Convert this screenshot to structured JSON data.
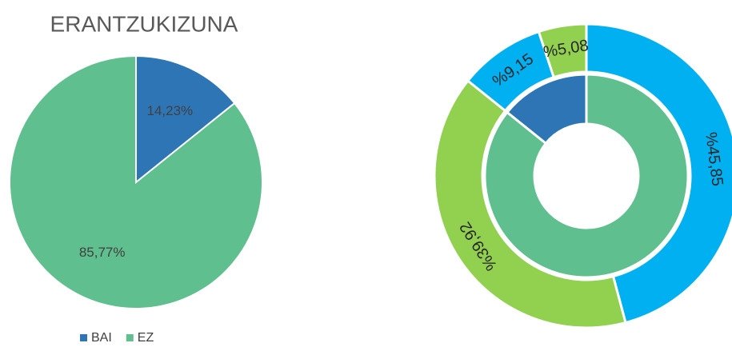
{
  "chart_data": [
    {
      "type": "pie",
      "title": "ERANTZUKIZUNA",
      "categories": [
        "BAI",
        "EZ"
      ],
      "values": [
        14.23,
        85.77
      ],
      "value_labels": [
        "14,23%",
        "85,77%"
      ],
      "colors": [
        "#2e75b6",
        "#5fbf8f"
      ],
      "legend": "bottom"
    },
    {
      "type": "donut",
      "series": [
        {
          "values": [
            85.77,
            14.23
          ],
          "colors": [
            "#5fbf8f",
            "#2e75b6"
          ]
        },
        {
          "values": [
            45.85,
            39.92,
            9.15,
            5.08
          ],
          "value_labels": [
            "%45,85",
            "%39,92",
            "%9,15",
            "%5,08"
          ],
          "colors": [
            "#00b0f0",
            "#92d050",
            "#00b0f0",
            "#92d050"
          ]
        }
      ]
    }
  ]
}
